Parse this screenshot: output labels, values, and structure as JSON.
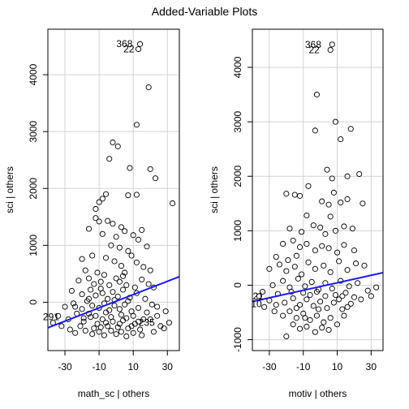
{
  "title": "Added-Variable Plots",
  "chart_data": [
    {
      "type": "scatter",
      "xlabel": "math_sc | others",
      "ylabel": "sci  | others",
      "xlim": [
        -40,
        37
      ],
      "ylim": [
        -850,
        4800
      ],
      "xticks": [
        -30,
        -10,
        10,
        30
      ],
      "yticks": [
        0,
        1000,
        2000,
        3000,
        4000
      ],
      "grid": true,
      "fit_line": {
        "x": [
          -40,
          37
        ],
        "y": [
          -450,
          450
        ]
      },
      "point_labels": [
        {
          "text": "368",
          "x": 12,
          "y": 4540
        },
        {
          "text": "22",
          "x": 13,
          "y": 4450
        },
        {
          "text": "291",
          "x": -31,
          "y": -260
        },
        {
          "text": "235",
          "x": 25,
          "y": -360
        }
      ],
      "points": [
        [
          14,
          4540
        ],
        [
          13,
          4450
        ],
        [
          19,
          3780
        ],
        [
          12,
          3120
        ],
        [
          -2,
          2810
        ],
        [
          1,
          2740
        ],
        [
          -4,
          2520
        ],
        [
          8,
          2360
        ],
        [
          20,
          2340
        ],
        [
          23,
          2180
        ],
        [
          33,
          1740
        ],
        [
          -12,
          1640
        ],
        [
          -10,
          1760
        ],
        [
          -8,
          1820
        ],
        [
          -6,
          1900
        ],
        [
          7,
          1880
        ],
        [
          12,
          1890
        ],
        [
          -12,
          1480
        ],
        [
          -10,
          1420
        ],
        [
          -5,
          1430
        ],
        [
          -16,
          1290
        ],
        [
          -2,
          1380
        ],
        [
          3,
          1320
        ],
        [
          -8,
          1200
        ],
        [
          0,
          1150
        ],
        [
          5,
          1250
        ],
        [
          10,
          1180
        ],
        [
          13,
          1100
        ],
        [
          15,
          1270
        ],
        [
          18,
          980
        ],
        [
          -3,
          1000
        ],
        [
          2,
          960
        ],
        [
          7,
          900
        ],
        [
          -20,
          760
        ],
        [
          -14,
          820
        ],
        [
          -6,
          780
        ],
        [
          -1,
          720
        ],
        [
          3,
          640
        ],
        [
          9,
          820
        ],
        [
          12,
          700
        ],
        [
          16,
          620
        ],
        [
          20,
          560
        ],
        [
          -18,
          560
        ],
        [
          -11,
          520
        ],
        [
          -7,
          480
        ],
        [
          5,
          520
        ],
        [
          -22,
          380
        ],
        [
          -16,
          420
        ],
        [
          -13,
          320
        ],
        [
          -9,
          360
        ],
        [
          -4,
          300
        ],
        [
          0,
          420
        ],
        [
          2,
          360
        ],
        [
          6,
          300
        ],
        [
          11,
          260
        ],
        [
          15,
          400
        ],
        [
          19,
          320
        ],
        [
          22,
          260
        ],
        [
          -26,
          200
        ],
        [
          -20,
          140
        ],
        [
          -15,
          220
        ],
        [
          -12,
          120
        ],
        [
          -8,
          160
        ],
        [
          -5,
          60
        ],
        [
          -2,
          180
        ],
        [
          1,
          100
        ],
        [
          4,
          220
        ],
        [
          8,
          80
        ],
        [
          12,
          160
        ],
        [
          17,
          60
        ],
        [
          21,
          -40
        ],
        [
          -30,
          -80
        ],
        [
          -25,
          -20
        ],
        [
          -20,
          -120
        ],
        [
          -17,
          20
        ],
        [
          -14,
          -60
        ],
        [
          -10,
          -100
        ],
        [
          -7,
          -20
        ],
        [
          -4,
          -140
        ],
        [
          -1,
          -60
        ],
        [
          2,
          -120
        ],
        [
          5,
          -40
        ],
        [
          9,
          -160
        ],
        [
          13,
          -100
        ],
        [
          18,
          -180
        ],
        [
          24,
          -80
        ],
        [
          29,
          -160
        ],
        [
          -34,
          -240
        ],
        [
          -28,
          -300
        ],
        [
          -23,
          -200
        ],
        [
          -19,
          -340
        ],
        [
          -15,
          -260
        ],
        [
          -11,
          -380
        ],
        [
          -8,
          -300
        ],
        [
          -5,
          -420
        ],
        [
          -2,
          -340
        ],
        [
          1,
          -440
        ],
        [
          4,
          -320
        ],
        [
          7,
          -460
        ],
        [
          11,
          -380
        ],
        [
          14,
          -480
        ],
        [
          20,
          -300
        ],
        [
          26,
          -420
        ],
        [
          31,
          -360
        ],
        [
          -37,
          -360
        ],
        [
          -32,
          -420
        ],
        [
          -27,
          -480
        ],
        [
          -24,
          -540
        ],
        [
          -21,
          -420
        ],
        [
          -18,
          -500
        ],
        [
          -14,
          -560
        ],
        [
          -10,
          -520
        ],
        [
          -7,
          -580
        ],
        [
          -3,
          -500
        ],
        [
          0,
          -560
        ],
        [
          3,
          -520
        ],
        [
          6,
          -600
        ],
        [
          10,
          -540
        ],
        [
          15,
          -580
        ],
        [
          22,
          -520
        ],
        [
          28,
          -460
        ],
        [
          -24,
          -80
        ],
        [
          -16,
          -200
        ],
        [
          -12,
          -240
        ],
        [
          -6,
          -180
        ],
        [
          -3,
          -260
        ],
        [
          3,
          -220
        ],
        [
          6,
          -280
        ],
        [
          10,
          -240
        ],
        [
          16,
          -300
        ],
        [
          -9,
          -440
        ],
        [
          -13,
          -460
        ],
        [
          9,
          -420
        ],
        [
          2,
          -380
        ],
        [
          -6,
          -360
        ],
        [
          13,
          -340
        ],
        [
          -19,
          -280
        ],
        [
          24,
          -240
        ],
        [
          -1,
          40
        ],
        [
          7,
          20
        ],
        [
          -16,
          60
        ],
        [
          -9,
          240
        ],
        [
          4,
          460
        ]
      ]
    },
    {
      "type": "scatter",
      "xlabel": "motiv | others",
      "ylabel": "sci  | others",
      "xlim": [
        -40,
        37
      ],
      "ylim": [
        -1200,
        4700
      ],
      "xticks": [
        -30,
        -10,
        10,
        30
      ],
      "yticks": [
        -1000,
        0,
        1000,
        2000,
        3000,
        4000
      ],
      "grid": true,
      "fit_line": {
        "x": [
          -40,
          37
        ],
        "y": [
          -300,
          230
        ]
      },
      "point_labels": [
        {
          "text": "368",
          "x": 3,
          "y": 4420
        },
        {
          "text": "22",
          "x": 2,
          "y": 4320
        },
        {
          "text": "21",
          "x": -31,
          "y": -200
        },
        {
          "text": "10",
          "x": -32,
          "y": -340
        }
      ],
      "points": [
        [
          7,
          4420
        ],
        [
          6,
          4320
        ],
        [
          -2,
          3500
        ],
        [
          9,
          3000
        ],
        [
          12,
          2680
        ],
        [
          18,
          2870
        ],
        [
          -3,
          2840
        ],
        [
          4,
          2120
        ],
        [
          7,
          1960
        ],
        [
          16,
          2000
        ],
        [
          23,
          2040
        ],
        [
          -20,
          1680
        ],
        [
          -15,
          1660
        ],
        [
          -12,
          1640
        ],
        [
          -7,
          1820
        ],
        [
          1,
          1540
        ],
        [
          5,
          1480
        ],
        [
          8,
          1700
        ],
        [
          12,
          1520
        ],
        [
          16,
          1580
        ],
        [
          25,
          1500
        ],
        [
          -18,
          1040
        ],
        [
          -11,
          980
        ],
        [
          -4,
          1100
        ],
        [
          0,
          1060
        ],
        [
          3,
          940
        ],
        [
          9,
          1000
        ],
        [
          14,
          1080
        ],
        [
          19,
          1040
        ],
        [
          -8,
          1280
        ],
        [
          6,
          1260
        ],
        [
          -22,
          760
        ],
        [
          -16,
          820
        ],
        [
          -12,
          700
        ],
        [
          -8,
          760
        ],
        [
          -3,
          640
        ],
        [
          1,
          720
        ],
        [
          5,
          680
        ],
        [
          10,
          600
        ],
        [
          14,
          740
        ],
        [
          20,
          640
        ],
        [
          -26,
          520
        ],
        [
          -19,
          460
        ],
        [
          -14,
          540
        ],
        [
          -30,
          300
        ],
        [
          -24,
          380
        ],
        [
          -20,
          260
        ],
        [
          -15,
          340
        ],
        [
          -11,
          200
        ],
        [
          -7,
          420
        ],
        [
          -3,
          300
        ],
        [
          2,
          360
        ],
        [
          6,
          240
        ],
        [
          11,
          440
        ],
        [
          16,
          280
        ],
        [
          21,
          400
        ],
        [
          26,
          360
        ],
        [
          -34,
          -120
        ],
        [
          -28,
          0
        ],
        [
          -22,
          80
        ],
        [
          -18,
          -40
        ],
        [
          -13,
          120
        ],
        [
          -9,
          -20
        ],
        [
          -5,
          60
        ],
        [
          -1,
          -80
        ],
        [
          3,
          40
        ],
        [
          7,
          -60
        ],
        [
          12,
          80
        ],
        [
          17,
          -20
        ],
        [
          22,
          40
        ],
        [
          28,
          -100
        ],
        [
          33,
          -40
        ],
        [
          -36,
          -200
        ],
        [
          -30,
          -280
        ],
        [
          -25,
          -160
        ],
        [
          -21,
          -320
        ],
        [
          -16,
          -240
        ],
        [
          -12,
          -360
        ],
        [
          -8,
          -260
        ],
        [
          -4,
          -380
        ],
        [
          0,
          -300
        ],
        [
          4,
          -420
        ],
        [
          8,
          -320
        ],
        [
          13,
          -440
        ],
        [
          18,
          -340
        ],
        [
          24,
          -260
        ],
        [
          30,
          -200
        ],
        [
          -27,
          -480
        ],
        [
          -22,
          -560
        ],
        [
          -18,
          -480
        ],
        [
          -14,
          -600
        ],
        [
          -10,
          -520
        ],
        [
          -6,
          -640
        ],
        [
          -2,
          -560
        ],
        [
          2,
          -680
        ],
        [
          6,
          -600
        ],
        [
          10,
          -720
        ],
        [
          14,
          -560
        ],
        [
          -20,
          -940
        ],
        [
          -16,
          -720
        ],
        [
          -12,
          -800
        ],
        [
          -8,
          -760
        ],
        [
          -3,
          -860
        ],
        [
          1,
          -780
        ],
        [
          5,
          -820
        ],
        [
          -33,
          -400
        ],
        [
          -26,
          -360
        ],
        [
          -6,
          -180
        ],
        [
          -2,
          -120
        ],
        [
          9,
          -180
        ],
        [
          15,
          -140
        ],
        [
          20,
          -220
        ],
        [
          -10,
          -140
        ],
        [
          -17,
          -120
        ],
        [
          11,
          -260
        ],
        [
          -1,
          -440
        ],
        [
          16,
          -400
        ],
        [
          -14,
          -420
        ],
        [
          3,
          -200
        ],
        [
          -9,
          -600
        ],
        [
          13,
          -200
        ]
      ]
    }
  ]
}
